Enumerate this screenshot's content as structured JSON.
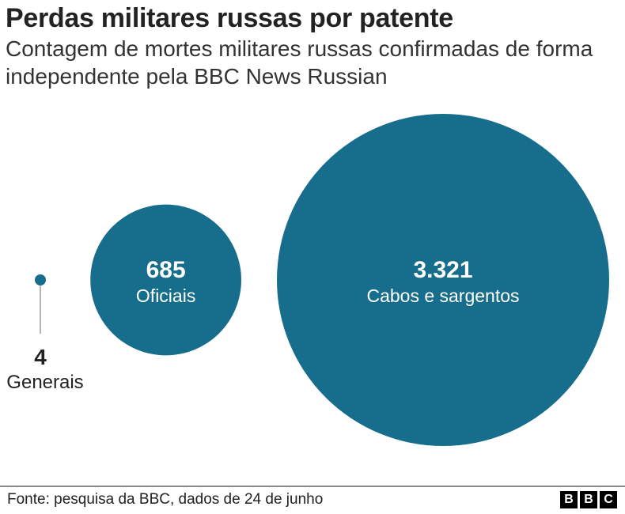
{
  "chart_data": {
    "type": "bubble",
    "title": "Perdas militares russas por patente",
    "subtitle": "Contagem de mortes militares russas confirmadas de forma independente pela BBC News Russian",
    "categories": [
      "Generais",
      "Oficiais",
      "Cabos e sargentos"
    ],
    "values": [
      4,
      685,
      3321
    ],
    "value_labels": [
      "4",
      "685",
      "3.321"
    ],
    "colors": {
      "bubble": "#176d8c",
      "label": "#ffffff",
      "outside_label": "#222222",
      "leader_line": "#9a9a9a"
    },
    "grid": false,
    "legend": "none"
  },
  "footer": {
    "source": "Fonte: pesquisa da BBC, dados de 24 de junho",
    "logo_letters": [
      "B",
      "B",
      "C"
    ]
  }
}
